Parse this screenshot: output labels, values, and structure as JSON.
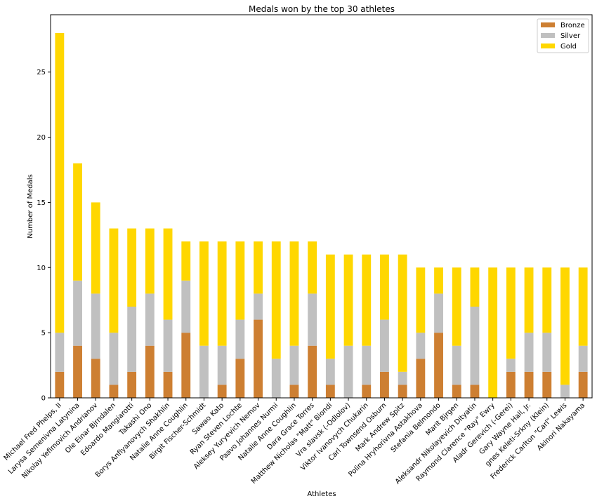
{
  "chart_data": {
    "type": "bar",
    "stacked": true,
    "title": "Medals won by the top 30 athletes",
    "xlabel": "Athletes",
    "ylabel": "Number of Medals",
    "ylim": [
      0,
      29.4
    ],
    "yticks": [
      0,
      5,
      10,
      15,
      20,
      25
    ],
    "legend_position": "top-right",
    "categories": [
      "Michael Fred Phelps, II",
      "Larysa Semenivna Latynina",
      "Nikolay Yefimovich Andrianov",
      "Ole Einar Bjrndalen",
      "Edoardo Mangiarotti",
      "Takashi Ono",
      "Borys Anfiyanovych Shakhlin",
      "Natalie Anne Coughlin",
      "Birgit Fischer-Schmidt",
      "Sawao Kato",
      "Ryan Steven Lochte",
      "Aleksey Yuryevich Nemov",
      "Paavo Johannes Nurmi",
      "Natalie Anne Coughlin",
      "Dara Grace Torres",
      "Matthew Nicholas \"Matt\" Biondi",
      "Vra slavsk (-Odlolov)",
      "Viktor Ivanovych Chukarin",
      "Carl Townsend Osburn",
      "Mark Andrew Spitz",
      "Polina Hryhorivna Astakhova",
      "Stefania Belmondo",
      "Marit Bjrgen",
      "Aleksandr Nikolayevich Dityatin",
      "Raymond Clarence \"Ray\" Ewry",
      "Aladr Gerevich (-Gerei)",
      "Gary Wayne Hall, Jr.",
      "gnes Keleti-Srkny (Klein)",
      "Frederick Carlton \"Carl\" Lewis",
      "Akinori Nakayama"
    ],
    "series": [
      {
        "name": "Bronze",
        "color": "#cd7f32",
        "values": [
          2,
          4,
          3,
          1,
          2,
          4,
          2,
          5,
          0,
          1,
          3,
          6,
          0,
          1,
          4,
          1,
          0,
          1,
          2,
          1,
          3,
          5,
          1,
          1,
          0,
          2,
          2,
          2,
          0,
          2
        ]
      },
      {
        "name": "Silver",
        "color": "#c0c0c0",
        "values": [
          3,
          5,
          5,
          4,
          5,
          4,
          4,
          4,
          4,
          3,
          3,
          2,
          3,
          3,
          4,
          2,
          4,
          3,
          4,
          1,
          2,
          3,
          3,
          6,
          0,
          1,
          3,
          3,
          1,
          2
        ]
      },
      {
        "name": "Gold",
        "color": "#ffd700",
        "values": [
          23,
          9,
          7,
          8,
          6,
          5,
          7,
          3,
          8,
          8,
          6,
          4,
          9,
          8,
          4,
          8,
          7,
          7,
          5,
          9,
          5,
          2,
          6,
          3,
          10,
          7,
          5,
          5,
          9,
          6
        ]
      }
    ]
  }
}
